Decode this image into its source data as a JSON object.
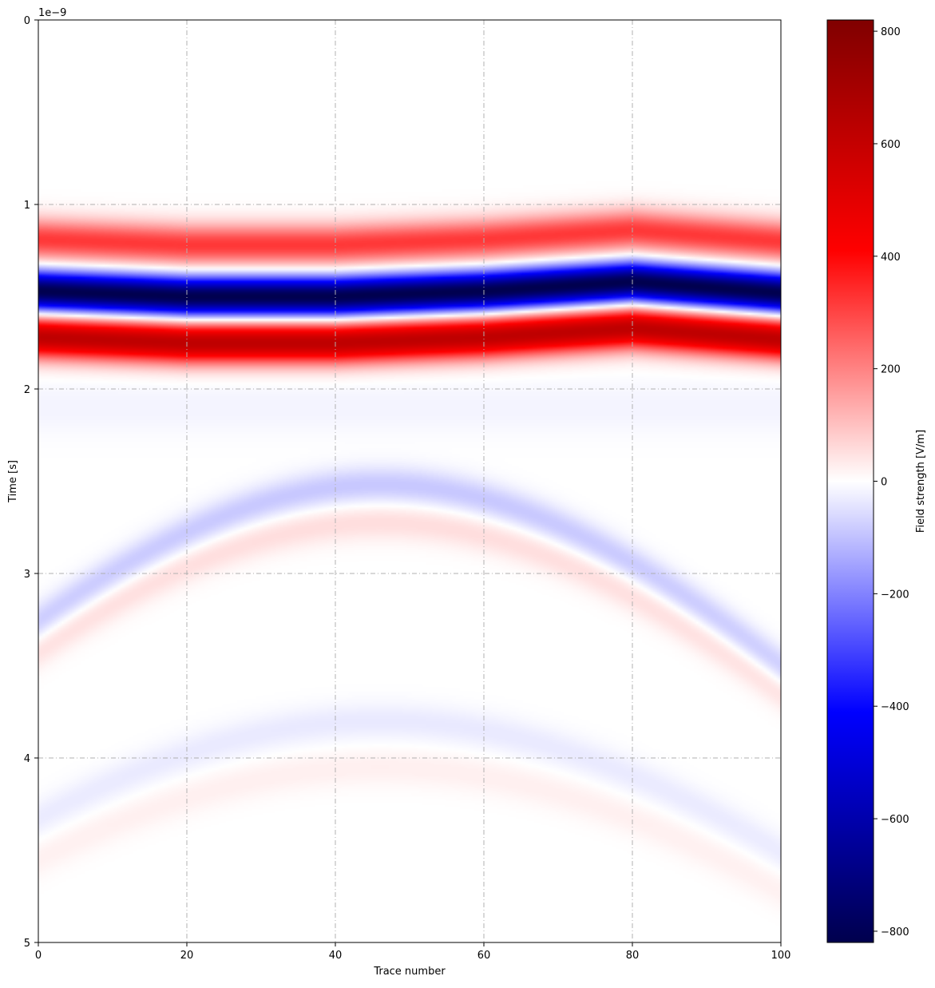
{
  "chart_data": {
    "type": "heatmap",
    "title": "",
    "xlabel": "Trace number",
    "ylabel": "Time [s]",
    "y_offset_text": "1e−9",
    "xlim": [
      0,
      100
    ],
    "ylim": [
      5,
      0
    ],
    "y_inverted": true,
    "x_ticks": [
      {
        "value": 0,
        "label": "0"
      },
      {
        "value": 20,
        "label": "20"
      },
      {
        "value": 40,
        "label": "40"
      },
      {
        "value": 60,
        "label": "60"
      },
      {
        "value": 80,
        "label": "80"
      },
      {
        "value": 100,
        "label": "100"
      }
    ],
    "y_ticks": [
      {
        "value": 0,
        "label": "0"
      },
      {
        "value": 1,
        "label": "1"
      },
      {
        "value": 2,
        "label": "2"
      },
      {
        "value": 3,
        "label": "3"
      },
      {
        "value": 4,
        "label": "4"
      },
      {
        "value": 5,
        "label": "5"
      }
    ],
    "grid": true,
    "grid_style": "dash-dot, light gray",
    "colormap": "seismic",
    "colorbar": {
      "label": "Field strength [V/m]",
      "range": [
        -820,
        820
      ],
      "ticks": [
        {
          "value": 800,
          "label": "800"
        },
        {
          "value": 600,
          "label": "600"
        },
        {
          "value": 400,
          "label": "400"
        },
        {
          "value": 200,
          "label": "200"
        },
        {
          "value": 0,
          "label": "0"
        },
        {
          "value": -200,
          "label": "−200"
        },
        {
          "value": -400,
          "label": "−400"
        },
        {
          "value": -600,
          "label": "−600"
        },
        {
          "value": -800,
          "label": "−800"
        }
      ],
      "colors": [
        "#00004d",
        "#0000ff",
        "#ffffff",
        "#ff0000",
        "#800000"
      ]
    },
    "direct_wave": {
      "description": "Strong horizontal wavelet (red-blue-red) around t=1.2e-9 to 1.9e-9 s, slight undulation across traces",
      "components": [
        {
          "polarity": "positive",
          "center_time": 1.2,
          "peak_value": 320
        },
        {
          "polarity": "negative",
          "center_time": 1.48,
          "peak_value": -820
        },
        {
          "polarity": "positive",
          "center_time": 1.73,
          "peak_value": 620
        }
      ],
      "center_time_by_trace": [
        {
          "trace": 0,
          "time": 1.47
        },
        {
          "trace": 20,
          "time": 1.5
        },
        {
          "trace": 40,
          "time": 1.5
        },
        {
          "trace": 60,
          "time": 1.47
        },
        {
          "trace": 80,
          "time": 1.42
        },
        {
          "trace": 100,
          "time": 1.48
        }
      ]
    },
    "hyperbolas": [
      {
        "apex_trace": 46,
        "apex_time": 2.52,
        "polarity": "negative",
        "amplitude": -90
      },
      {
        "apex_trace": 46,
        "apex_time": 2.72,
        "polarity": "positive",
        "amplitude": 55
      },
      {
        "apex_trace": 46,
        "apex_time": 3.8,
        "polarity": "negative",
        "amplitude": -35
      },
      {
        "apex_trace": 46,
        "apex_time": 4.05,
        "polarity": "positive",
        "amplitude": 25
      }
    ]
  }
}
